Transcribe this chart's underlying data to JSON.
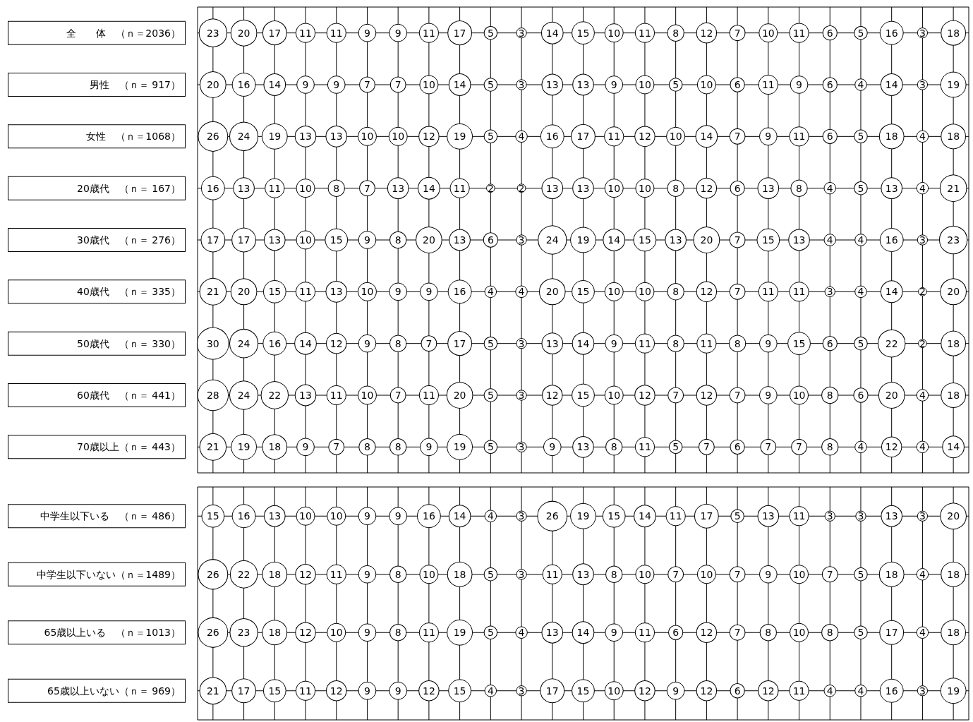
{
  "chart_data": [
    {
      "type": "heatmap",
      "grid": true,
      "tick_labels": "y",
      "data_labels": true,
      "categories": [
        null,
        null,
        null,
        null,
        null,
        null,
        null,
        null,
        null,
        null,
        null,
        null,
        null,
        null,
        null,
        null,
        null,
        null,
        null,
        null,
        null,
        null,
        null,
        null,
        null
      ],
      "y_categories": [
        "全　　体　（ｎ＝2036）",
        "男性　（ｎ＝ 917）",
        "女性　（ｎ＝1068）",
        "20歳代　（ｎ＝ 167）",
        "30歳代　（ｎ＝ 276）",
        "40歳代　（ｎ＝ 335）",
        "50歳代　（ｎ＝ 330）",
        "60歳代　（ｎ＝ 441）",
        "70歳以上（ｎ＝ 443）"
      ],
      "cells": [
        [
          23,
          20,
          17,
          11,
          11,
          9,
          9,
          11,
          17,
          5,
          3,
          14,
          15,
          10,
          11,
          8,
          12,
          7,
          10,
          11,
          6,
          5,
          16,
          3,
          18
        ],
        [
          20,
          16,
          14,
          9,
          9,
          7,
          7,
          10,
          14,
          5,
          3,
          13,
          13,
          9,
          10,
          5,
          10,
          6,
          11,
          9,
          6,
          4,
          14,
          3,
          19
        ],
        [
          26,
          24,
          19,
          13,
          13,
          10,
          10,
          12,
          19,
          5,
          4,
          16,
          17,
          11,
          12,
          10,
          14,
          7,
          9,
          11,
          6,
          5,
          18,
          4,
          18
        ],
        [
          16,
          13,
          11,
          10,
          8,
          7,
          13,
          14,
          11,
          2,
          2,
          13,
          13,
          10,
          10,
          8,
          12,
          6,
          13,
          8,
          4,
          5,
          13,
          4,
          21
        ],
        [
          17,
          17,
          13,
          10,
          15,
          9,
          8,
          20,
          13,
          6,
          3,
          24,
          19,
          14,
          15,
          13,
          20,
          7,
          15,
          13,
          4,
          4,
          16,
          3,
          23
        ],
        [
          21,
          20,
          15,
          11,
          13,
          10,
          9,
          9,
          16,
          4,
          4,
          20,
          15,
          10,
          10,
          8,
          12,
          7,
          11,
          11,
          3,
          4,
          14,
          2,
          20
        ],
        [
          30,
          24,
          16,
          14,
          12,
          9,
          8,
          7,
          17,
          5,
          3,
          13,
          14,
          9,
          11,
          8,
          11,
          8,
          9,
          15,
          6,
          5,
          22,
          2,
          18
        ],
        [
          28,
          24,
          22,
          13,
          11,
          10,
          7,
          11,
          20,
          5,
          3,
          12,
          15,
          10,
          12,
          7,
          12,
          7,
          9,
          10,
          8,
          6,
          20,
          4,
          18
        ],
        [
          21,
          19,
          18,
          9,
          7,
          8,
          8,
          9,
          19,
          5,
          3,
          9,
          13,
          8,
          11,
          5,
          7,
          6,
          7,
          7,
          8,
          4,
          12,
          4,
          14
        ]
      ]
    },
    {
      "type": "heatmap",
      "grid": true,
      "tick_labels": "y",
      "data_labels": true,
      "categories": [
        null,
        null,
        null,
        null,
        null,
        null,
        null,
        null,
        null,
        null,
        null,
        null,
        null,
        null,
        null,
        null,
        null,
        null,
        null,
        null,
        null,
        null,
        null,
        null,
        null
      ],
      "y_categories": [
        "中学生以下いる　（ｎ＝ 486）",
        "中学生以下いない（ｎ＝1489）",
        "65歳以上いる　（ｎ＝1013）",
        "65歳以上いない（ｎ＝ 969）"
      ],
      "cells": [
        [
          15,
          16,
          13,
          10,
          10,
          9,
          9,
          16,
          14,
          4,
          3,
          26,
          19,
          15,
          14,
          11,
          17,
          5,
          13,
          11,
          3,
          3,
          13,
          3,
          20
        ],
        [
          26,
          22,
          18,
          12,
          11,
          9,
          8,
          10,
          18,
          5,
          3,
          11,
          13,
          8,
          10,
          7,
          10,
          7,
          9,
          10,
          7,
          5,
          18,
          4,
          18
        ],
        [
          26,
          23,
          18,
          12,
          10,
          9,
          8,
          11,
          19,
          5,
          4,
          13,
          14,
          9,
          11,
          6,
          12,
          7,
          8,
          10,
          8,
          5,
          17,
          4,
          18
        ],
        [
          21,
          17,
          15,
          11,
          12,
          9,
          9,
          12,
          15,
          4,
          3,
          17,
          15,
          10,
          12,
          9,
          12,
          6,
          12,
          11,
          4,
          4,
          16,
          3,
          19
        ]
      ]
    }
  ]
}
